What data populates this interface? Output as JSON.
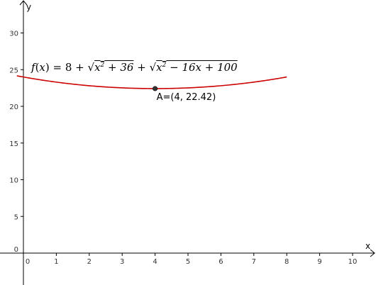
{
  "chart_data": {
    "type": "line",
    "title": "",
    "xlabel": "x",
    "ylabel": "y",
    "xlim": [
      -0.2,
      10.6
    ],
    "ylim": [
      -5,
      34.5
    ],
    "x_ticks": [
      0,
      1,
      2,
      3,
      4,
      5,
      6,
      7,
      8,
      9,
      10
    ],
    "y_ticks": [
      0,
      5,
      10,
      15,
      20,
      25,
      30
    ],
    "grid": false,
    "series": [
      {
        "name": "f(x) = 8 + √(x² + 36) + √(x² − 16x + 100)",
        "color": "#cc0000",
        "x": [
          -0.2,
          0,
          1,
          2,
          3,
          4,
          5,
          6,
          7,
          8
        ],
        "y": [
          24.16,
          24.0,
          23.29,
          22.79,
          22.5,
          22.42,
          22.5,
          22.79,
          23.29,
          24.0
        ]
      }
    ],
    "points": [
      {
        "label": "A=(4, 22.42)",
        "x": 4,
        "y": 22.42,
        "color": "#333333"
      }
    ]
  }
}
